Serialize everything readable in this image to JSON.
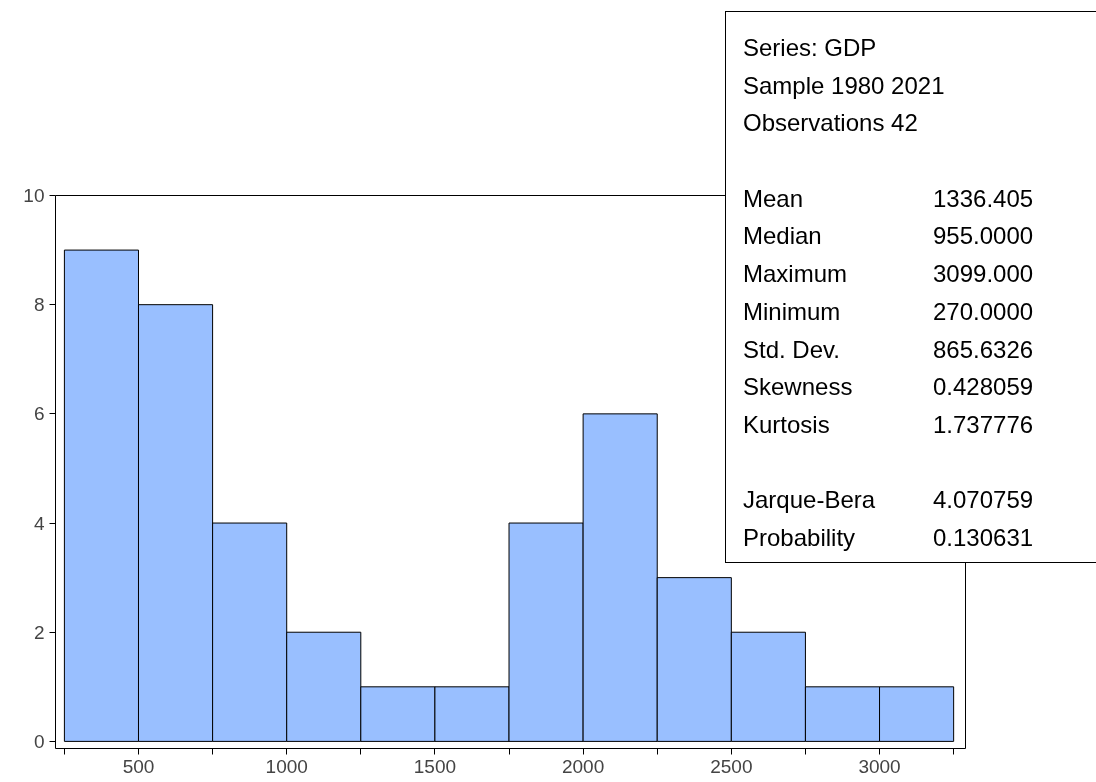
{
  "chart_data": [
    {
      "type": "histogram",
      "bins": [
        250,
        500,
        750,
        1000,
        1250,
        1500,
        1750,
        2000,
        2250,
        2500,
        2750,
        3000,
        3250
      ],
      "values": [
        9,
        8,
        4,
        2,
        1,
        1,
        4,
        6,
        3,
        2,
        1,
        1
      ],
      "color": "#99bfff",
      "xlim": [
        220,
        3290
      ],
      "xticks": [
        {
          "value": 250,
          "label": null
        },
        500,
        {
          "value": 750,
          "label": null
        },
        1000,
        {
          "value": 1250,
          "label": null
        },
        1500,
        {
          "value": 1750,
          "label": null
        },
        2000,
        {
          "value": 2250,
          "label": null
        },
        2500,
        {
          "value": 2750,
          "label": null
        },
        3000,
        {
          "value": 3250,
          "label": null
        }
      ],
      "ylim": [
        -0.13,
        10
      ],
      "yticks": [
        0,
        2,
        4,
        6,
        8,
        10
      ],
      "grid": false
    },
    {
      "type": "other",
      "annotations": [
        "Series: GDP",
        "Sample 1980 2021",
        "Observations 42",
        "Mean",
        "1336.405",
        "Median",
        "955.0000",
        "Maximum",
        "3099.000",
        "Minimum",
        "270.0000",
        "Std. Dev.",
        "865.6326",
        "Skewness",
        "0.428059",
        "Kurtosis",
        "1.737776",
        "Jarque-Bera",
        "4.070759",
        "Probability",
        "0.130631"
      ]
    }
  ]
}
